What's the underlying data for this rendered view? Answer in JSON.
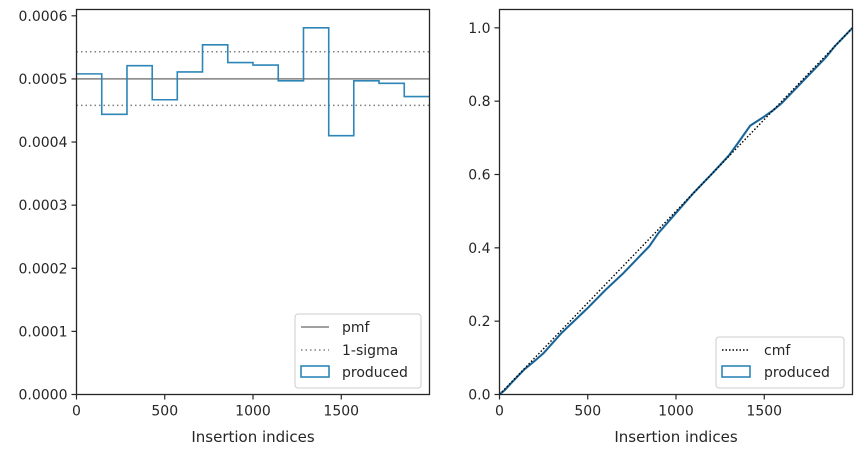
{
  "chart_data": [
    {
      "type": "histogram-step",
      "xlabel": "Insertion indices",
      "ylabel": "",
      "xlim": [
        0,
        2000
      ],
      "ylim": [
        0,
        0.00061
      ],
      "x_ticks": [
        0,
        500,
        1000,
        1500
      ],
      "x_tick_labels": [
        "0",
        "500",
        "1000",
        "1500"
      ],
      "y_ticks": [
        0,
        0.0001,
        0.0002,
        0.0003,
        0.0004,
        0.0005,
        0.0006
      ],
      "y_tick_labels": [
        "0.0000",
        "0.0001",
        "0.0002",
        "0.0003",
        "0.0004",
        "0.0005",
        "0.0006"
      ],
      "legend_position": "lower-right",
      "pmf": 0.0005,
      "sigma_upper": 0.000543,
      "sigma_lower": 0.000458,
      "bin_edges": [
        0,
        143,
        286,
        429,
        571,
        714,
        857,
        1000,
        1143,
        1286,
        1429,
        1571,
        1714,
        1857,
        2000
      ],
      "produced": [
        0.000508,
        0.000444,
        0.000521,
        0.000467,
        0.000511,
        0.000554,
        0.000526,
        0.000522,
        0.000497,
        0.000581,
        0.00041,
        0.000497,
        0.000493,
        0.000472
      ],
      "legend": [
        "pmf",
        "1-sigma",
        "produced"
      ],
      "colors": {
        "pmf": "#808080",
        "sigma": "#808080",
        "produced": "#2e86b8"
      }
    },
    {
      "type": "line",
      "xlabel": "Insertion indices",
      "ylabel": "",
      "xlim": [
        0,
        2000
      ],
      "ylim": [
        0,
        1.05
      ],
      "x_ticks": [
        0,
        500,
        1000,
        1500
      ],
      "x_tick_labels": [
        "0",
        "500",
        "1000",
        "1500"
      ],
      "y_ticks": [
        0,
        0.2,
        0.4,
        0.6,
        0.8,
        1.0
      ],
      "y_tick_labels": [
        "0.0",
        "0.2",
        "0.4",
        "0.6",
        "0.8",
        "1.0"
      ],
      "legend_position": "lower-right",
      "cmf_x": [
        0,
        2000
      ],
      "cmf_y": [
        0,
        1
      ],
      "produced_x": [
        0,
        30,
        60,
        100,
        140,
        200,
        250,
        300,
        350,
        400,
        500,
        600,
        700,
        800,
        850,
        900,
        1000,
        1100,
        1150,
        1200,
        1300,
        1350,
        1420,
        1500,
        1550,
        1600,
        1700,
        1800,
        1850,
        1900,
        2000
      ],
      "produced_y": [
        0,
        0.012,
        0.028,
        0.048,
        0.068,
        0.092,
        0.113,
        0.14,
        0.167,
        0.19,
        0.236,
        0.285,
        0.33,
        0.38,
        0.405,
        0.44,
        0.495,
        0.55,
        0.575,
        0.6,
        0.652,
        0.685,
        0.733,
        0.758,
        0.775,
        0.795,
        0.845,
        0.895,
        0.92,
        0.95,
        1.0
      ],
      "legend": [
        "cmf",
        "produced"
      ],
      "colors": {
        "cmf": "#000000",
        "produced": "#2e86b8",
        "produced_line": "#1f5a8a"
      }
    }
  ]
}
